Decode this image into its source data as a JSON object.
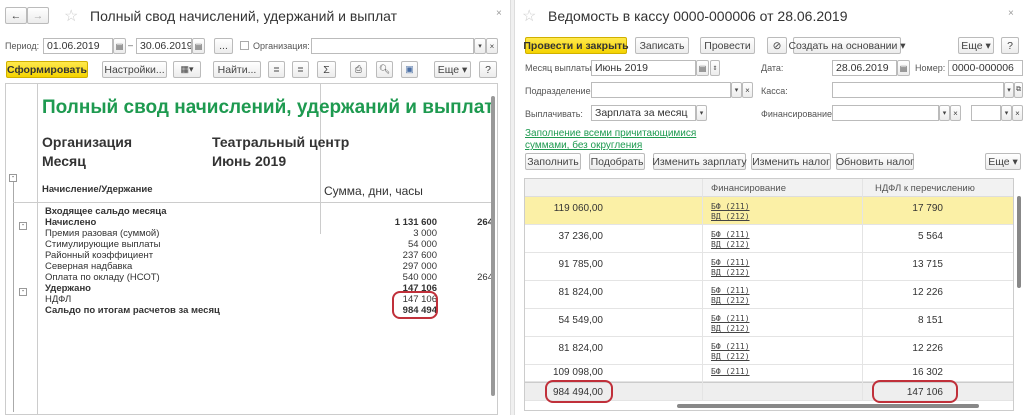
{
  "left": {
    "title": "Полный свод начислений, удержаний и выплат",
    "period_label": "Период:",
    "date_from": "01.06.2019",
    "dash": "–",
    "date_to": "30.06.2019",
    "ellipsis": "...",
    "org_label": "Организация:",
    "org_value": "",
    "generate": "Сформировать",
    "settings": "Настройки...",
    "find": "Найти...",
    "sigma": "Σ",
    "more": "Еще ▾",
    "help": "?",
    "report": {
      "title": "Полный свод начислений, удержаний и выплат",
      "org_label": "Организация",
      "org_value": "Театральный центр",
      "month_label": "Месяц",
      "month_value": "Июнь 2019",
      "col1": "Начисление/Удержание",
      "col2": "Сумма, дни, часы",
      "rows": [
        {
          "name": "Входящее сальдо месяца",
          "value": "",
          "days": "",
          "bold": true
        },
        {
          "name": "Начислено",
          "value": "1 131 600",
          "days": "264",
          "bold": true
        },
        {
          "name": "Премия разовая (суммой)",
          "value": "3 000",
          "days": ""
        },
        {
          "name": "Стимулирующие выплаты",
          "value": "54 000",
          "days": ""
        },
        {
          "name": "Районный коэффициент",
          "value": "237 600",
          "days": ""
        },
        {
          "name": "Северная надбавка",
          "value": "297 000",
          "days": ""
        },
        {
          "name": "Оплата по окладу (НСОТ)",
          "value": "540 000",
          "days": "264"
        },
        {
          "name": "Удержано",
          "value": "147 106",
          "days": "",
          "bold": true
        },
        {
          "name": "НДФЛ",
          "value": "147 106",
          "days": ""
        },
        {
          "name": "Сальдо по итогам расчетов за месяц",
          "value": "984 494",
          "days": "",
          "bold": true
        }
      ]
    }
  },
  "right": {
    "title": "Ведомость в кассу 0000-000006 от 28.06.2019",
    "post_close": "Провести и закрыть",
    "save": "Записать",
    "post": "Провести",
    "create_based": "Создать на основании ▾",
    "more": "Еще ▾",
    "help": "?",
    "month_label": "Месяц выплаты:",
    "month_value": "Июнь 2019",
    "date_label": "Дата:",
    "date_value": "28.06.2019",
    "number_label": "Номер:",
    "number_value": "0000-000006",
    "dept_label": "Подразделение:",
    "cash_label": "Касса:",
    "pay_label": "Выплачивать:",
    "pay_value": "Зарплата за месяц",
    "fin_label": "Финансирование:",
    "fill_link": "Заполнение всеми причитающимися суммами, без округления",
    "fill": "Заполнить",
    "pick": "Подобрать",
    "change_salary": "Изменить зарплату",
    "change_tax": "Изменить налог",
    "update_tax": "Обновить налог",
    "more2": "Еще ▾",
    "table": {
      "headers": [
        "",
        "Финансирование",
        "НДФЛ к перечислению"
      ],
      "rows": [
        {
          "amount": "119 060,00",
          "fin1": "БФ (211)",
          "fin2": "ВД (212)",
          "tax": "17 790"
        },
        {
          "amount": "37 236,00",
          "fin1": "БФ (211)",
          "fin2": "ВД (212)",
          "tax": "5 564"
        },
        {
          "amount": "91 785,00",
          "fin1": "БФ (211)",
          "fin2": "ВД (212)",
          "tax": "13 715"
        },
        {
          "amount": "81 824,00",
          "fin1": "БФ (211)",
          "fin2": "ВД (212)",
          "tax": "12 226"
        },
        {
          "amount": "54 549,00",
          "fin1": "БФ (211)",
          "fin2": "ВД (212)",
          "tax": "8 151"
        },
        {
          "amount": "81 824,00",
          "fin1": "БФ (211)",
          "fin2": "ВД (212)",
          "tax": "12 226"
        },
        {
          "amount": "109 098,00",
          "fin1": "БФ (211)",
          "fin2": "",
          "tax": "16 302"
        }
      ],
      "total_amount": "984 494,00",
      "total_tax": "147 106"
    }
  },
  "colors": {
    "accent_yellow": "#f4d300",
    "report_title_green": "#1e9a50",
    "highlight_row": "#fbf0a6",
    "annotation_red": "#c0303a"
  }
}
